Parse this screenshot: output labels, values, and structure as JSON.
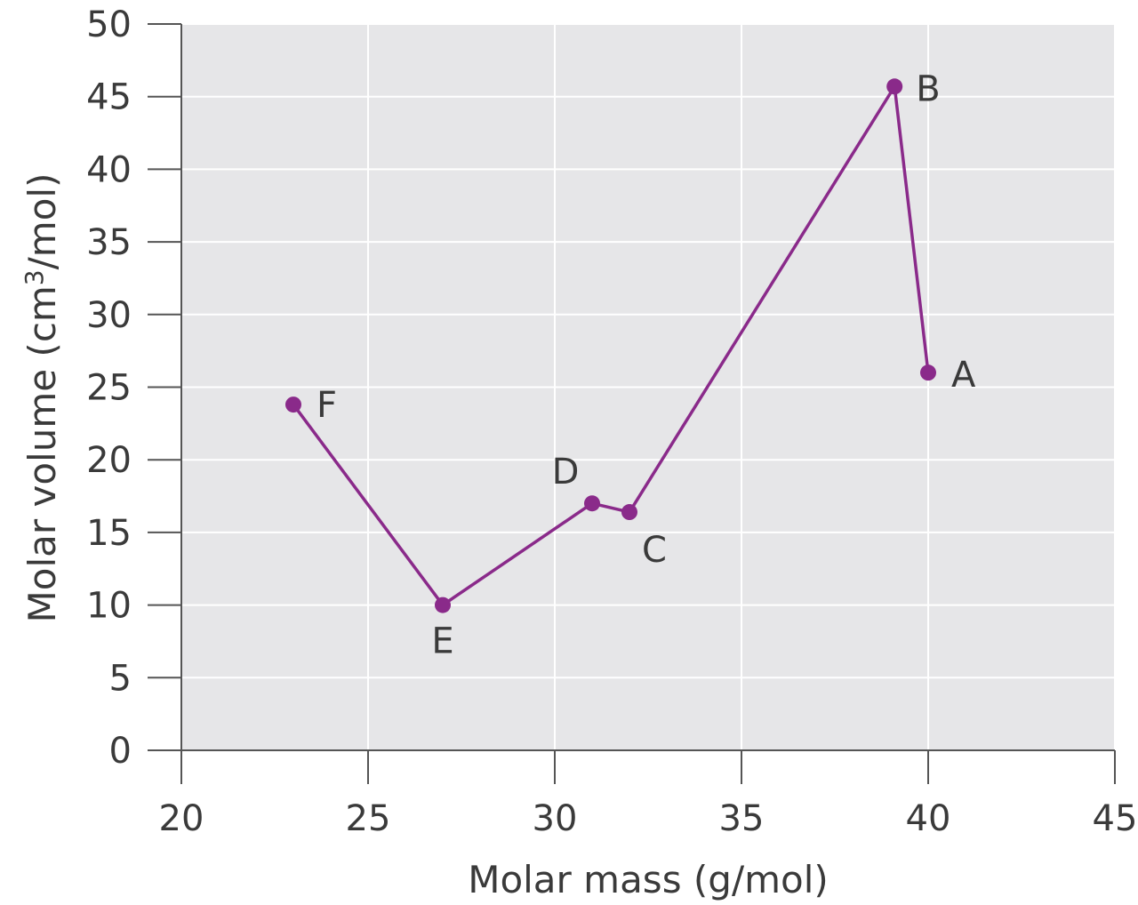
{
  "chart_data": {
    "type": "line",
    "title": "",
    "xlabel": "Molar mass (g/mol)",
    "ylabel_main": "Molar volume (cm",
    "ylabel_sup": "3",
    "ylabel_tail": "/mol)",
    "xlim": [
      20,
      45
    ],
    "ylim": [
      0,
      50
    ],
    "xticks": [
      20,
      25,
      30,
      35,
      40,
      45
    ],
    "yticks": [
      0,
      5,
      10,
      15,
      20,
      25,
      30,
      35,
      40,
      45,
      50
    ],
    "grid": true,
    "line_color": "#8a2a8a",
    "plot_background": "#e6e6e8",
    "series": [
      {
        "points": [
          {
            "label": "F",
            "x": 23.0,
            "y": 23.8
          },
          {
            "label": "E",
            "x": 27.0,
            "y": 10.0
          },
          {
            "label": "D",
            "x": 31.0,
            "y": 17.0
          },
          {
            "label": "C",
            "x": 32.0,
            "y": 16.4
          },
          {
            "label": "B",
            "x": 39.1,
            "y": 45.7
          },
          {
            "label": "A",
            "x": 40.0,
            "y": 26.0
          }
        ]
      }
    ]
  }
}
